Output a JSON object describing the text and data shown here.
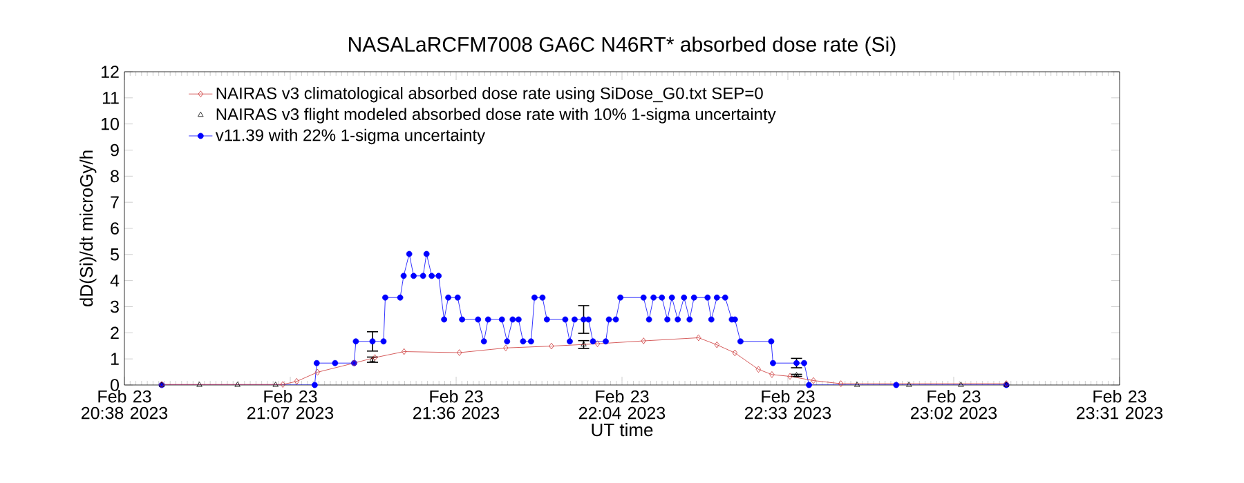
{
  "chart_data": {
    "type": "line",
    "title": "NASALaRCFM7008  GA6C N46RT* absorbed dose rate (Si)",
    "xlabel": "UT time",
    "ylabel": "dD(Si)/dt microGy/h",
    "xlim": [
      "2023-02-23T20:38:00",
      "2023-02-23T23:30:30"
    ],
    "xticks": [
      {
        "value": "2023-02-23T20:38:00",
        "label": "Feb 23 20:38 2023"
      },
      {
        "value": "2023-02-23T21:06:45",
        "label": "Feb 23 21:07 2023"
      },
      {
        "value": "2023-02-23T21:35:30",
        "label": "Feb 23 21:36 2023"
      },
      {
        "value": "2023-02-23T22:04:15",
        "label": "Feb 23 22:04 2023"
      },
      {
        "value": "2023-02-23T22:33:00",
        "label": "Feb 23 22:33 2023"
      },
      {
        "value": "2023-02-23T23:01:45",
        "label": "Feb 23 23:02 2023"
      },
      {
        "value": "2023-02-23T23:30:30",
        "label": "Feb 23 23:31 2023"
      }
    ],
    "ylim": [
      0,
      12
    ],
    "yticks": [
      0,
      1,
      2,
      3,
      4,
      5,
      6,
      7,
      8,
      9,
      10,
      11,
      12
    ],
    "grid": false,
    "legend": "top left",
    "series": [
      {
        "name": "NAIRAS v3 climatological absorbed dose rate using SiDose_G0.txt SEP=0",
        "marker": "diamond",
        "line_style": "solid",
        "color": "#cc3333",
        "x": [
          "2023-02-23T20:44:28",
          "2023-02-23T21:05:28",
          "2023-02-23T21:07:52",
          "2023-02-23T21:11:28",
          "2023-02-23T21:17:49",
          "2023-02-23T21:21:25",
          "2023-02-23T21:26:28",
          "2023-02-23T21:36:04",
          "2023-02-23T21:44:06",
          "2023-02-23T21:52:01",
          "2023-02-23T22:00:00",
          "2023-02-23T22:07:59",
          "2023-02-23T22:17:31",
          "2023-02-23T22:20:42",
          "2023-02-23T22:23:49",
          "2023-02-23T22:27:54",
          "2023-02-23T22:30:14",
          "2023-02-23T22:33:22",
          "2023-02-23T22:37:26",
          "2023-02-23T22:42:11",
          "2023-02-23T23:10:52"
        ],
        "values": [
          0.02,
          0.02,
          0.14,
          0.49,
          0.84,
          1.05,
          1.28,
          1.24,
          1.42,
          1.49,
          1.58,
          1.69,
          1.81,
          1.54,
          1.23,
          0.6,
          0.4,
          0.33,
          0.17,
          0.05,
          0.05
        ]
      },
      {
        "name": "NAIRAS v3 flight modeled absorbed dose rate with 10% 1-sigma uncertainty",
        "type": "scatter",
        "marker": "triangle",
        "color": "#000000",
        "x": [
          "2023-02-23T20:44:28",
          "2023-02-23T20:51:00",
          "2023-02-23T20:57:36",
          "2023-02-23T21:04:12",
          "2023-02-23T21:21:00",
          "2023-02-23T21:57:36",
          "2023-02-23T22:34:30",
          "2023-02-23T22:45:00",
          "2023-02-23T22:54:00",
          "2023-02-23T23:03:00",
          "2023-02-23T23:10:52"
        ],
        "values": [
          0,
          0,
          0,
          0,
          0.97,
          1.55,
          0.37,
          0,
          0,
          0,
          0
        ],
        "errors": [
          null,
          null,
          null,
          null,
          0.1,
          0.15,
          0.04,
          null,
          null,
          null,
          null
        ]
      },
      {
        "name": "v11.39 with 22% 1-sigma uncertainty",
        "marker": "circle",
        "line_style": "solid",
        "color": "#0000ff",
        "x": [
          "2023-02-23T20:44:28",
          "2023-02-23T21:10:59",
          "2023-02-23T21:11:20",
          "2023-02-23T21:14:31",
          "2023-02-23T21:17:49",
          "2023-02-23T21:18:07",
          "2023-02-23T21:21:00",
          "2023-02-23T21:22:55",
          "2023-02-23T21:23:13",
          "2023-02-23T21:25:48",
          "2023-02-23T21:26:24",
          "2023-02-23T21:27:22",
          "2023-02-23T21:28:08",
          "2023-02-23T21:29:46",
          "2023-02-23T21:30:22",
          "2023-02-23T21:31:16",
          "2023-02-23T21:32:28",
          "2023-02-23T21:33:25",
          "2023-02-23T21:34:08",
          "2023-02-23T21:35:46",
          "2023-02-23T21:36:32",
          "2023-02-23T21:39:18",
          "2023-02-23T21:40:19",
          "2023-02-23T21:41:02",
          "2023-02-23T21:43:26",
          "2023-02-23T21:44:20",
          "2023-02-23T21:45:18",
          "2023-02-23T21:46:19",
          "2023-02-23T21:47:06",
          "2023-02-23T21:48:29",
          "2023-02-23T21:49:05",
          "2023-02-23T21:50:28",
          "2023-02-23T21:51:14",
          "2023-02-23T21:54:25",
          "2023-02-23T21:55:12",
          "2023-02-23T21:56:02",
          "2023-02-23T21:57:36",
          "2023-02-23T21:58:26",
          "2023-02-23T21:59:13",
          "2023-02-23T22:01:26",
          "2023-02-23T22:01:59",
          "2023-02-23T22:03:11",
          "2023-02-23T22:03:58",
          "2023-02-23T22:07:59",
          "2023-02-23T22:08:56",
          "2023-02-23T22:09:43",
          "2023-02-23T22:11:10",
          "2023-02-23T22:12:07",
          "2023-02-23T22:12:54",
          "2023-02-23T22:13:55",
          "2023-02-23T22:15:00",
          "2023-02-23T22:15:58",
          "2023-02-23T22:16:44",
          "2023-02-23T22:19:05",
          "2023-02-23T22:19:44",
          "2023-02-23T22:20:42",
          "2023-02-23T22:22:08",
          "2023-02-23T22:23:17",
          "2023-02-23T22:23:49",
          "2023-02-23T22:24:47",
          "2023-02-23T22:30:07",
          "2023-02-23T22:30:25",
          "2023-02-23T22:34:30",
          "2023-02-23T22:35:49",
          "2023-02-23T22:36:40",
          "2023-02-23T22:51:47",
          "2023-02-23T23:10:52"
        ],
        "values": [
          0,
          0,
          0.84,
          0.84,
          0.84,
          1.67,
          1.67,
          1.67,
          3.35,
          3.35,
          4.18,
          5.02,
          4.18,
          4.18,
          5.02,
          4.18,
          4.18,
          2.51,
          3.35,
          3.35,
          2.51,
          2.51,
          1.67,
          2.51,
          2.51,
          1.67,
          2.51,
          2.51,
          1.67,
          1.67,
          3.35,
          3.35,
          2.51,
          2.51,
          1.67,
          2.51,
          2.51,
          2.51,
          1.67,
          1.67,
          2.51,
          2.51,
          3.35,
          3.35,
          2.51,
          3.35,
          3.35,
          2.51,
          3.35,
          2.51,
          3.35,
          2.51,
          3.35,
          3.35,
          2.51,
          3.35,
          3.35,
          2.51,
          2.51,
          1.67,
          1.67,
          0.84,
          0.84,
          0.84,
          0,
          0,
          0
        ],
        "errors": [
          null,
          null,
          null,
          null,
          null,
          null,
          0.37,
          null,
          null,
          null,
          null,
          null,
          null,
          null,
          null,
          null,
          null,
          null,
          null,
          null,
          null,
          null,
          null,
          null,
          null,
          null,
          null,
          null,
          null,
          null,
          null,
          null,
          null,
          null,
          null,
          null,
          0.53,
          null,
          null,
          null,
          null,
          null,
          null,
          null,
          null,
          null,
          null,
          null,
          null,
          null,
          null,
          null,
          null,
          null,
          null,
          null,
          null,
          null,
          null,
          null,
          null,
          null,
          0.18,
          null,
          null,
          null,
          null
        ]
      }
    ]
  }
}
